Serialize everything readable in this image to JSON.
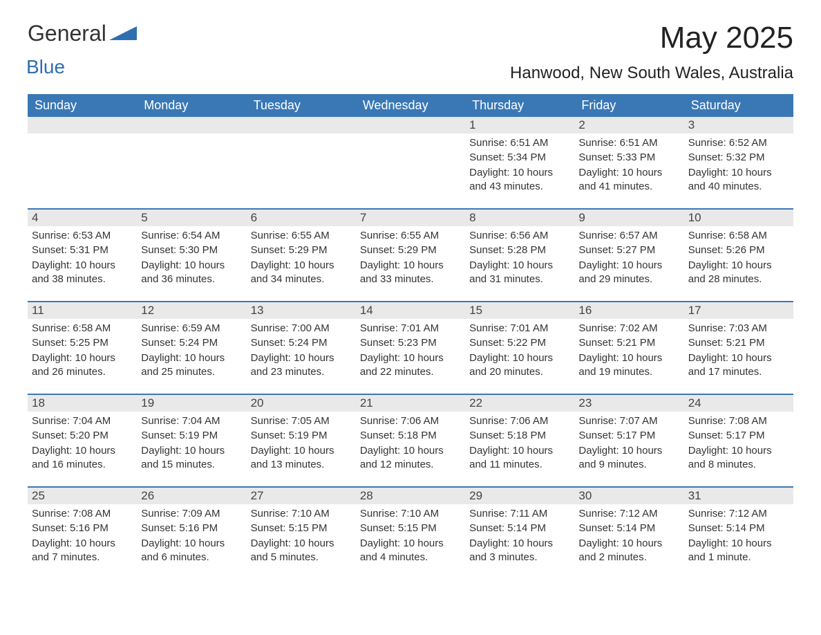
{
  "logo": {
    "text_general": "General",
    "text_blue": "Blue",
    "triangle_color": "#2f6fb0"
  },
  "header": {
    "month_title": "May 2025",
    "location": "Hanwood, New South Wales, Australia"
  },
  "colors": {
    "header_bg": "#3a78b5",
    "header_text": "#ffffff",
    "daynum_bg": "#e9e9e9",
    "week_border": "#3a78b5",
    "body_text": "#333333",
    "background": "#ffffff"
  },
  "day_names": [
    "Sunday",
    "Monday",
    "Tuesday",
    "Wednesday",
    "Thursday",
    "Friday",
    "Saturday"
  ],
  "weeks": [
    [
      {
        "day": "",
        "sunrise": "",
        "sunset": "",
        "daylight": ""
      },
      {
        "day": "",
        "sunrise": "",
        "sunset": "",
        "daylight": ""
      },
      {
        "day": "",
        "sunrise": "",
        "sunset": "",
        "daylight": ""
      },
      {
        "day": "",
        "sunrise": "",
        "sunset": "",
        "daylight": ""
      },
      {
        "day": "1",
        "sunrise": "Sunrise: 6:51 AM",
        "sunset": "Sunset: 5:34 PM",
        "daylight": "Daylight: 10 hours and 43 minutes."
      },
      {
        "day": "2",
        "sunrise": "Sunrise: 6:51 AM",
        "sunset": "Sunset: 5:33 PM",
        "daylight": "Daylight: 10 hours and 41 minutes."
      },
      {
        "day": "3",
        "sunrise": "Sunrise: 6:52 AM",
        "sunset": "Sunset: 5:32 PM",
        "daylight": "Daylight: 10 hours and 40 minutes."
      }
    ],
    [
      {
        "day": "4",
        "sunrise": "Sunrise: 6:53 AM",
        "sunset": "Sunset: 5:31 PM",
        "daylight": "Daylight: 10 hours and 38 minutes."
      },
      {
        "day": "5",
        "sunrise": "Sunrise: 6:54 AM",
        "sunset": "Sunset: 5:30 PM",
        "daylight": "Daylight: 10 hours and 36 minutes."
      },
      {
        "day": "6",
        "sunrise": "Sunrise: 6:55 AM",
        "sunset": "Sunset: 5:29 PM",
        "daylight": "Daylight: 10 hours and 34 minutes."
      },
      {
        "day": "7",
        "sunrise": "Sunrise: 6:55 AM",
        "sunset": "Sunset: 5:29 PM",
        "daylight": "Daylight: 10 hours and 33 minutes."
      },
      {
        "day": "8",
        "sunrise": "Sunrise: 6:56 AM",
        "sunset": "Sunset: 5:28 PM",
        "daylight": "Daylight: 10 hours and 31 minutes."
      },
      {
        "day": "9",
        "sunrise": "Sunrise: 6:57 AM",
        "sunset": "Sunset: 5:27 PM",
        "daylight": "Daylight: 10 hours and 29 minutes."
      },
      {
        "day": "10",
        "sunrise": "Sunrise: 6:58 AM",
        "sunset": "Sunset: 5:26 PM",
        "daylight": "Daylight: 10 hours and 28 minutes."
      }
    ],
    [
      {
        "day": "11",
        "sunrise": "Sunrise: 6:58 AM",
        "sunset": "Sunset: 5:25 PM",
        "daylight": "Daylight: 10 hours and 26 minutes."
      },
      {
        "day": "12",
        "sunrise": "Sunrise: 6:59 AM",
        "sunset": "Sunset: 5:24 PM",
        "daylight": "Daylight: 10 hours and 25 minutes."
      },
      {
        "day": "13",
        "sunrise": "Sunrise: 7:00 AM",
        "sunset": "Sunset: 5:24 PM",
        "daylight": "Daylight: 10 hours and 23 minutes."
      },
      {
        "day": "14",
        "sunrise": "Sunrise: 7:01 AM",
        "sunset": "Sunset: 5:23 PM",
        "daylight": "Daylight: 10 hours and 22 minutes."
      },
      {
        "day": "15",
        "sunrise": "Sunrise: 7:01 AM",
        "sunset": "Sunset: 5:22 PM",
        "daylight": "Daylight: 10 hours and 20 minutes."
      },
      {
        "day": "16",
        "sunrise": "Sunrise: 7:02 AM",
        "sunset": "Sunset: 5:21 PM",
        "daylight": "Daylight: 10 hours and 19 minutes."
      },
      {
        "day": "17",
        "sunrise": "Sunrise: 7:03 AM",
        "sunset": "Sunset: 5:21 PM",
        "daylight": "Daylight: 10 hours and 17 minutes."
      }
    ],
    [
      {
        "day": "18",
        "sunrise": "Sunrise: 7:04 AM",
        "sunset": "Sunset: 5:20 PM",
        "daylight": "Daylight: 10 hours and 16 minutes."
      },
      {
        "day": "19",
        "sunrise": "Sunrise: 7:04 AM",
        "sunset": "Sunset: 5:19 PM",
        "daylight": "Daylight: 10 hours and 15 minutes."
      },
      {
        "day": "20",
        "sunrise": "Sunrise: 7:05 AM",
        "sunset": "Sunset: 5:19 PM",
        "daylight": "Daylight: 10 hours and 13 minutes."
      },
      {
        "day": "21",
        "sunrise": "Sunrise: 7:06 AM",
        "sunset": "Sunset: 5:18 PM",
        "daylight": "Daylight: 10 hours and 12 minutes."
      },
      {
        "day": "22",
        "sunrise": "Sunrise: 7:06 AM",
        "sunset": "Sunset: 5:18 PM",
        "daylight": "Daylight: 10 hours and 11 minutes."
      },
      {
        "day": "23",
        "sunrise": "Sunrise: 7:07 AM",
        "sunset": "Sunset: 5:17 PM",
        "daylight": "Daylight: 10 hours and 9 minutes."
      },
      {
        "day": "24",
        "sunrise": "Sunrise: 7:08 AM",
        "sunset": "Sunset: 5:17 PM",
        "daylight": "Daylight: 10 hours and 8 minutes."
      }
    ],
    [
      {
        "day": "25",
        "sunrise": "Sunrise: 7:08 AM",
        "sunset": "Sunset: 5:16 PM",
        "daylight": "Daylight: 10 hours and 7 minutes."
      },
      {
        "day": "26",
        "sunrise": "Sunrise: 7:09 AM",
        "sunset": "Sunset: 5:16 PM",
        "daylight": "Daylight: 10 hours and 6 minutes."
      },
      {
        "day": "27",
        "sunrise": "Sunrise: 7:10 AM",
        "sunset": "Sunset: 5:15 PM",
        "daylight": "Daylight: 10 hours and 5 minutes."
      },
      {
        "day": "28",
        "sunrise": "Sunrise: 7:10 AM",
        "sunset": "Sunset: 5:15 PM",
        "daylight": "Daylight: 10 hours and 4 minutes."
      },
      {
        "day": "29",
        "sunrise": "Sunrise: 7:11 AM",
        "sunset": "Sunset: 5:14 PM",
        "daylight": "Daylight: 10 hours and 3 minutes."
      },
      {
        "day": "30",
        "sunrise": "Sunrise: 7:12 AM",
        "sunset": "Sunset: 5:14 PM",
        "daylight": "Daylight: 10 hours and 2 minutes."
      },
      {
        "day": "31",
        "sunrise": "Sunrise: 7:12 AM",
        "sunset": "Sunset: 5:14 PM",
        "daylight": "Daylight: 10 hours and 1 minute."
      }
    ]
  ]
}
